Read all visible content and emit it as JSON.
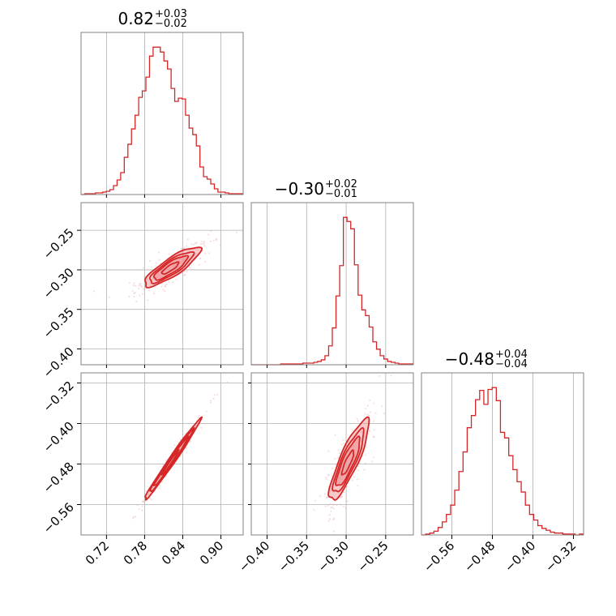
{
  "chart_data": {
    "type": "corner",
    "colors": {
      "accent": "#d62728",
      "fill": "#f08a8c",
      "points": "#e8a0a2",
      "grid": "#b0b0b0",
      "frame": "#808080"
    },
    "grid": true,
    "parameters": [
      {
        "title": {
          "value": "0.82",
          "plus": "+0.03",
          "minus": "−0.02"
        },
        "range": [
          0.68,
          0.935
        ],
        "ticks": [
          0.72,
          0.78,
          0.84,
          0.9
        ],
        "tick_labels": [
          "0.72",
          "0.78",
          "0.84",
          "0.90"
        ],
        "hist_edges": [
          0.68,
          0.935
        ],
        "hist_counts": [
          0,
          1,
          1,
          1,
          2,
          2,
          3,
          4,
          6,
          11,
          18,
          27,
          46,
          62,
          81,
          98,
          120,
          128,
          145,
          171,
          182,
          182,
          176,
          165,
          155,
          131,
          115,
          119,
          118,
          98,
          82,
          74,
          60,
          34,
          22,
          19,
          13,
          7,
          3,
          3,
          2,
          1,
          1,
          1,
          1
        ]
      },
      {
        "title": {
          "value": "−0.30",
          "plus": "+0.02",
          "minus": "−0.01"
        },
        "range": [
          -0.42,
          -0.215
        ],
        "ticks": [
          -0.4,
          -0.35,
          -0.3,
          -0.25
        ],
        "tick_labels": [
          "−0.40",
          "−0.35",
          "−0.30",
          "−0.25"
        ],
        "hist_edges": [
          -0.42,
          -0.215
        ],
        "hist_counts": [
          0,
          0,
          0,
          0,
          0,
          0,
          0,
          0,
          1,
          1,
          1,
          1,
          1,
          1,
          2,
          2,
          2,
          3,
          4,
          6,
          11,
          23,
          45,
          84,
          121,
          180,
          175,
          166,
          122,
          85,
          67,
          60,
          46,
          28,
          19,
          11,
          7,
          4,
          3,
          2,
          1,
          1,
          1,
          1
        ]
      },
      {
        "title": {
          "value": "−0.48",
          "plus": "+0.04",
          "minus": "−0.04"
        },
        "range": [
          -0.62,
          -0.3
        ],
        "ticks": [
          -0.56,
          -0.48,
          -0.4,
          -0.32
        ],
        "tick_labels": [
          "−0.56",
          "−0.48",
          "−0.40",
          "−0.32"
        ],
        "hist_edges": [
          -0.62,
          -0.3
        ],
        "hist_counts": [
          0,
          1,
          2,
          4,
          8,
          14,
          22,
          32,
          48,
          68,
          89,
          115,
          128,
          145,
          155,
          140,
          156,
          158,
          144,
          110,
          104,
          85,
          70,
          57,
          46,
          32,
          22,
          16,
          10,
          7,
          5,
          3,
          2,
          2,
          1,
          1,
          1,
          0,
          1
        ]
      }
    ],
    "pairs": [
      {
        "x_param": 0,
        "y_param": 1,
        "center": [
          0.82,
          -0.298
        ],
        "sigma": [
          0.022,
          0.0125
        ],
        "correlation": 0.85
      },
      {
        "x_param": 0,
        "y_param": 2,
        "center": [
          0.82,
          -0.478
        ],
        "sigma": [
          0.022,
          0.04
        ],
        "correlation": 0.99
      },
      {
        "x_param": 1,
        "y_param": 2,
        "center": [
          -0.298,
          -0.478
        ],
        "sigma": [
          0.0125,
          0.04
        ],
        "correlation": 0.86
      }
    ]
  }
}
